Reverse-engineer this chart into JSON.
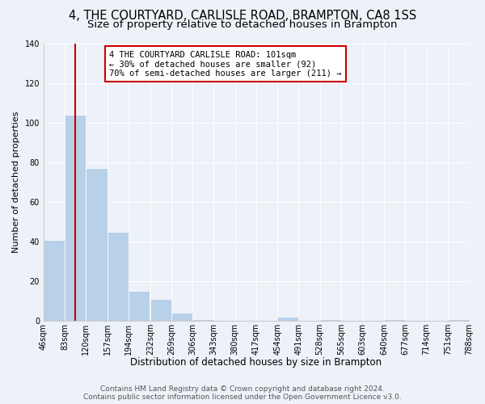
{
  "title": "4, THE COURTYARD, CARLISLE ROAD, BRAMPTON, CA8 1SS",
  "subtitle": "Size of property relative to detached houses in Brampton",
  "xlabel": "Distribution of detached houses by size in Brampton",
  "ylabel": "Number of detached properties",
  "bin_edges": [
    46,
    83,
    120,
    157,
    194,
    232,
    269,
    306,
    343,
    380,
    417,
    454,
    491,
    528,
    565,
    603,
    640,
    677,
    714,
    751,
    788
  ],
  "bin_labels": [
    "46sqm",
    "83sqm",
    "120sqm",
    "157sqm",
    "194sqm",
    "232sqm",
    "269sqm",
    "306sqm",
    "343sqm",
    "380sqm",
    "417sqm",
    "454sqm",
    "491sqm",
    "528sqm",
    "565sqm",
    "603sqm",
    "640sqm",
    "677sqm",
    "714sqm",
    "751sqm",
    "788sqm"
  ],
  "counts": [
    41,
    104,
    77,
    45,
    15,
    11,
    4,
    1,
    0,
    0,
    0,
    2,
    0,
    1,
    0,
    0,
    1,
    0,
    0,
    1
  ],
  "bar_color": "#b8d0e8",
  "bar_edge_color": "#b8d0e8",
  "property_line_x": 101,
  "property_line_color": "#cc0000",
  "annotation_text": "4 THE COURTYARD CARLISLE ROAD: 101sqm\n← 30% of detached houses are smaller (92)\n70% of semi-detached houses are larger (211) →",
  "annotation_box_color": "#ffffff",
  "annotation_box_edge_color": "#cc0000",
  "ylim": [
    0,
    140
  ],
  "yticks": [
    0,
    20,
    40,
    60,
    80,
    100,
    120,
    140
  ],
  "background_color": "#edf1f8",
  "plot_bg_color": "#edf1f8",
  "footer_text": "Contains HM Land Registry data © Crown copyright and database right 2024.\nContains public sector information licensed under the Open Government Licence v3.0.",
  "title_fontsize": 10.5,
  "subtitle_fontsize": 9.5,
  "xlabel_fontsize": 8.5,
  "ylabel_fontsize": 8,
  "tick_fontsize": 7,
  "footer_fontsize": 6.5,
  "annot_fontsize": 7.5
}
